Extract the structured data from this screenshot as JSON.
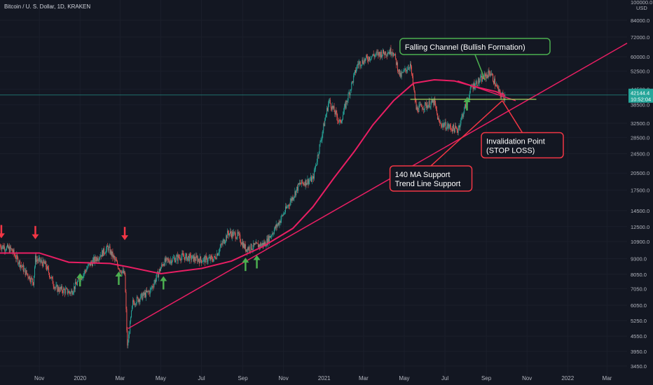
{
  "header": {
    "title": "Bitcoin / U. S. Dollar, 1D, KRAKEN"
  },
  "colors": {
    "background": "#131722",
    "grid": "#1b1f2b",
    "axis_text": "#b2b5be",
    "candle_up": "#26a69a",
    "candle_down": "#ef5350",
    "moving_average": "#e91e63",
    "trend_line": "#e91e63",
    "horizontal_line": "#a3d65c",
    "current_price_line": "#26a69a",
    "up_arrow": "#4caf50",
    "down_arrow": "#f23645",
    "box_green_border": "#4caf50",
    "box_red_border": "#f23645"
  },
  "chart_data": {
    "type": "candlestick",
    "symbol": "Bitcoin / U. S. Dollar",
    "interval": "1D",
    "exchange": "KRAKEN",
    "scale": "log",
    "x_start": "2019-09-03",
    "x_end": "2022-03-31",
    "x_tick_labels": [
      {
        "label": "Nov",
        "date": "2019-11-01"
      },
      {
        "label": "2020",
        "date": "2020-01-01"
      },
      {
        "label": "Mar",
        "date": "2020-03-01"
      },
      {
        "label": "May",
        "date": "2020-05-01"
      },
      {
        "label": "Jul",
        "date": "2020-07-01"
      },
      {
        "label": "Sep",
        "date": "2020-09-01"
      },
      {
        "label": "Nov",
        "date": "2020-11-01"
      },
      {
        "label": "2021",
        "date": "2021-01-01"
      },
      {
        "label": "Mar",
        "date": "2021-03-01"
      },
      {
        "label": "May",
        "date": "2021-05-01"
      },
      {
        "label": "Jul",
        "date": "2021-07-01"
      },
      {
        "label": "Sep",
        "date": "2021-09-01"
      },
      {
        "label": "Nov",
        "date": "2021-11-01"
      },
      {
        "label": "2022",
        "date": "2022-01-01"
      },
      {
        "label": "Mar",
        "date": "2022-03-01"
      }
    ],
    "y_ticks": [
      3450,
      3950,
      4550,
      5250,
      6050,
      7050,
      8050,
      9300,
      10900,
      12500,
      14500,
      17500,
      20500,
      24500,
      28500,
      32500,
      38500,
      44500,
      52500,
      60000,
      72000,
      84000
    ],
    "y_tick_labels": [
      "3450.0",
      "3950.0",
      "4550.0",
      "5250.0",
      "6050.0",
      "7050.0",
      "8050.0",
      "9300.0",
      "10900.0",
      "12500.0",
      "14500.0",
      "17500.0",
      "20500.0",
      "24500.0",
      "28500.0",
      "32500.0",
      "38500.0",
      "44500.0",
      "52500.0",
      "60000.0",
      "72000.0",
      "84000.0"
    ],
    "y_axis_top_label": "100000.0",
    "y_axis_unit": "USD",
    "current_price": 42144.4,
    "current_price_label": "42144.4",
    "countdown_label": "10:52:04",
    "price_path": [
      {
        "date": "2019-09-03",
        "close": 10500
      },
      {
        "date": "2019-09-20",
        "close": 10100
      },
      {
        "date": "2019-10-10",
        "close": 8300
      },
      {
        "date": "2019-10-23",
        "close": 7500
      },
      {
        "date": "2019-10-26",
        "close": 9300
      },
      {
        "date": "2019-11-10",
        "close": 8800
      },
      {
        "date": "2019-11-25",
        "close": 7100
      },
      {
        "date": "2019-12-18",
        "close": 6800
      },
      {
        "date": "2020-01-15",
        "close": 8800
      },
      {
        "date": "2020-02-12",
        "close": 10300
      },
      {
        "date": "2020-02-28",
        "close": 8600
      },
      {
        "date": "2020-03-08",
        "close": 8000
      },
      {
        "date": "2020-03-12",
        "close": 4100
      },
      {
        "date": "2020-03-20",
        "close": 6200
      },
      {
        "date": "2020-04-15",
        "close": 6900
      },
      {
        "date": "2020-05-05",
        "close": 9000
      },
      {
        "date": "2020-06-01",
        "close": 9500
      },
      {
        "date": "2020-07-01",
        "close": 9200
      },
      {
        "date": "2020-07-20",
        "close": 9300
      },
      {
        "date": "2020-08-10",
        "close": 11800
      },
      {
        "date": "2020-08-25",
        "close": 11500
      },
      {
        "date": "2020-09-05",
        "close": 10200
      },
      {
        "date": "2020-10-05",
        "close": 10700
      },
      {
        "date": "2020-10-25",
        "close": 13000
      },
      {
        "date": "2020-11-25",
        "close": 18500
      },
      {
        "date": "2020-12-15",
        "close": 19400
      },
      {
        "date": "2021-01-08",
        "close": 40000
      },
      {
        "date": "2021-01-25",
        "close": 32500
      },
      {
        "date": "2021-02-20",
        "close": 56000
      },
      {
        "date": "2021-03-13",
        "close": 60500
      },
      {
        "date": "2021-04-14",
        "close": 63500
      },
      {
        "date": "2021-04-25",
        "close": 50000
      },
      {
        "date": "2021-05-10",
        "close": 56000
      },
      {
        "date": "2021-05-19",
        "close": 37000
      },
      {
        "date": "2021-06-15",
        "close": 39500
      },
      {
        "date": "2021-06-22",
        "close": 32500
      },
      {
        "date": "2021-07-20",
        "close": 30500
      },
      {
        "date": "2021-08-10",
        "close": 45500
      },
      {
        "date": "2021-09-07",
        "close": 52000
      },
      {
        "date": "2021-09-21",
        "close": 42500
      },
      {
        "date": "2021-09-28",
        "close": 41500
      },
      {
        "date": "2021-09-29",
        "close": 42144.4
      }
    ],
    "ma_140": [
      {
        "date": "2019-09-03",
        "value": 9800
      },
      {
        "date": "2019-11-01",
        "value": 9800
      },
      {
        "date": "2019-12-15",
        "value": 9000
      },
      {
        "date": "2020-02-15",
        "value": 8900
      },
      {
        "date": "2020-03-15",
        "value": 8600
      },
      {
        "date": "2020-05-01",
        "value": 8100
      },
      {
        "date": "2020-07-01",
        "value": 8500
      },
      {
        "date": "2020-08-15",
        "value": 9100
      },
      {
        "date": "2020-10-01",
        "value": 10400
      },
      {
        "date": "2020-11-15",
        "value": 12300
      },
      {
        "date": "2020-12-15",
        "value": 15000
      },
      {
        "date": "2021-01-15",
        "value": 19500
      },
      {
        "date": "2021-02-15",
        "value": 25000
      },
      {
        "date": "2021-03-15",
        "value": 32000
      },
      {
        "date": "2021-04-15",
        "value": 40000
      },
      {
        "date": "2021-05-15",
        "value": 47000
      },
      {
        "date": "2021-06-15",
        "value": 48500
      },
      {
        "date": "2021-07-15",
        "value": 48000
      },
      {
        "date": "2021-08-15",
        "value": 45500
      },
      {
        "date": "2021-09-15",
        "value": 43500
      },
      {
        "date": "2021-09-29",
        "value": 42000
      }
    ],
    "trend_line": {
      "start": {
        "date": "2020-03-13",
        "price": 4880
      },
      "end": {
        "date": "2022-03-31",
        "price": 68000
      }
    },
    "horizontal_line": {
      "price": 40500,
      "start": "2021-05-10",
      "end": "2021-11-15"
    },
    "falling_channel_line": {
      "start": {
        "date": "2021-07-20",
        "price": 48000
      },
      "end": {
        "date": "2021-10-15",
        "price": 40000
      }
    },
    "signals": [
      {
        "type": "down",
        "date": "2019-09-05",
        "price": 11300
      },
      {
        "type": "down",
        "date": "2019-10-26",
        "price": 11200
      },
      {
        "type": "up",
        "date": "2020-01-01",
        "price": 7200
      },
      {
        "type": "down",
        "date": "2020-03-08",
        "price": 11100
      },
      {
        "type": "up",
        "date": "2020-02-28",
        "price": 7300
      },
      {
        "type": "up",
        "date": "2020-05-05",
        "price": 7000
      },
      {
        "type": "up",
        "date": "2020-09-05",
        "price": 8300
      },
      {
        "type": "up",
        "date": "2020-09-22",
        "price": 8500
      },
      {
        "type": "down",
        "date": "2021-05-10",
        "price": 62000
      },
      {
        "type": "up",
        "date": "2021-08-03",
        "price": 36500
      }
    ],
    "annotations": [
      {
        "text": "Falling Channel (Bullish Formation)",
        "style": "green",
        "box_date": "2021-08-15",
        "box_price": 66000,
        "pointer_date": "2021-08-30",
        "pointer_price": 48500
      },
      {
        "text": "Invalidation Point\n(STOP LOSS)",
        "style": "red",
        "box_date": "2021-10-25",
        "box_price": 26500,
        "pointer_date": "2021-09-25",
        "pointer_price": 40000
      },
      {
        "text": "140 MA Support\nTrend Line Support",
        "style": "red",
        "box_date": "2021-06-10",
        "box_price": 19500,
        "pointer_date": "2021-09-25",
        "pointer_price": 40000
      }
    ]
  }
}
